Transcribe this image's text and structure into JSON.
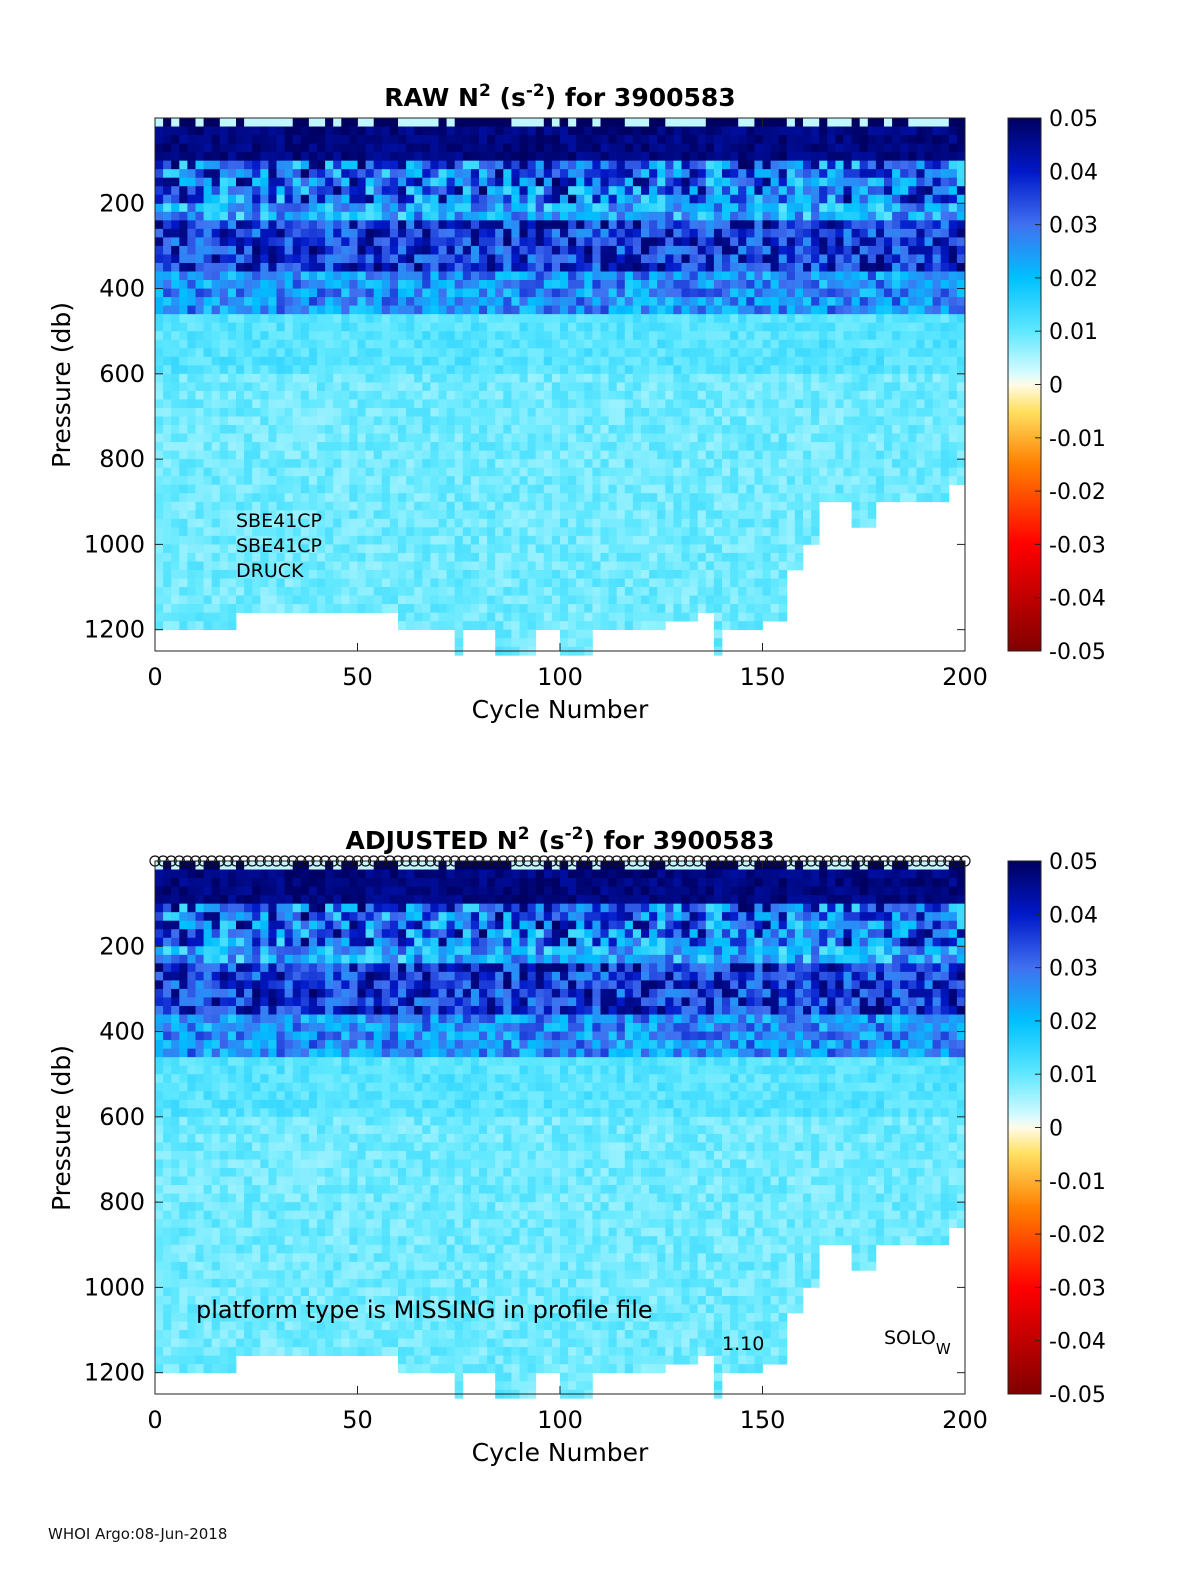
{
  "footer": "WHOI Argo:08-Jun-2018",
  "colors": {
    "colormap": [
      "#800000",
      "#ff0000",
      "#ff8000",
      "#ffe060",
      "#fffbe8",
      "#d8fbff",
      "#60e8ff",
      "#00c0ff",
      "#4070f0",
      "#0018c8",
      "#000060"
    ]
  },
  "chart_data": [
    {
      "type": "heatmap",
      "title_prefix": "RAW N",
      "title_sup1": "2",
      "title_mid": " (s",
      "title_sup2": "-2",
      "title_suffix": ") for 3900583",
      "xlabel": "Cycle Number",
      "ylabel": "Pressure (db)",
      "xlim": [
        0,
        200
      ],
      "ylim": [
        0,
        1250
      ],
      "xticks": [
        "0",
        "50",
        "100",
        "150",
        "200"
      ],
      "yticks": [
        "200",
        "400",
        "600",
        "800",
        "1000",
        "1200"
      ],
      "clim": [
        -0.05,
        0.05
      ],
      "colorbar_ticks": [
        "0.05",
        "0.04",
        "0.03",
        "0.02",
        "0.01",
        "0",
        "-0.01",
        "-0.02",
        "-0.03",
        "-0.04",
        "-0.05"
      ],
      "annotations": [
        "SBE41CP",
        "SBE41CP",
        "DRUCK"
      ],
      "max_pressure_profile": [
        [
          0,
          1200
        ],
        [
          20,
          1150
        ],
        [
          60,
          1200
        ],
        [
          70,
          1200
        ],
        [
          74,
          1250
        ],
        [
          76,
          1200
        ],
        [
          83,
          1250
        ],
        [
          94,
          1200
        ],
        [
          100,
          1250
        ],
        [
          108,
          1200
        ],
        [
          125,
          1180
        ],
        [
          134,
          1150
        ],
        [
          138,
          1250
        ],
        [
          140,
          1200
        ],
        [
          150,
          1180
        ],
        [
          155,
          1050
        ],
        [
          160,
          1000
        ],
        [
          164,
          900
        ],
        [
          169,
          900
        ],
        [
          172,
          950
        ],
        [
          178,
          900
        ],
        [
          195,
          850
        ],
        [
          198,
          850
        ],
        [
          200,
          850
        ]
      ]
    },
    {
      "type": "heatmap",
      "title_prefix": "ADJUSTED N",
      "title_sup1": "2",
      "title_mid": " (s",
      "title_sup2": "-2",
      "title_suffix": ") for 3900583",
      "xlabel": "Cycle Number",
      "ylabel": "Pressure (db)",
      "xlim": [
        0,
        200
      ],
      "ylim": [
        0,
        1250
      ],
      "xticks": [
        "0",
        "50",
        "100",
        "150",
        "200"
      ],
      "yticks": [
        "200",
        "400",
        "600",
        "800",
        "1000",
        "1200"
      ],
      "clim": [
        -0.05,
        0.05
      ],
      "colorbar_ticks": [
        "0.05",
        "0.04",
        "0.03",
        "0.02",
        "0.01",
        "0",
        "-0.01",
        "-0.02",
        "-0.03",
        "-0.04",
        "-0.05"
      ],
      "annotations": [
        "platform type is MISSING in profile file",
        "1.10",
        "SOLO",
        "W"
      ],
      "qc_markers": "circles",
      "max_pressure_profile": [
        [
          0,
          1200
        ],
        [
          20,
          1150
        ],
        [
          60,
          1200
        ],
        [
          70,
          1200
        ],
        [
          74,
          1250
        ],
        [
          76,
          1200
        ],
        [
          83,
          1250
        ],
        [
          94,
          1200
        ],
        [
          100,
          1250
        ],
        [
          108,
          1200
        ],
        [
          125,
          1180
        ],
        [
          134,
          1150
        ],
        [
          138,
          1250
        ],
        [
          140,
          1200
        ],
        [
          150,
          1180
        ],
        [
          155,
          1050
        ],
        [
          160,
          1000
        ],
        [
          164,
          900
        ],
        [
          169,
          900
        ],
        [
          172,
          950
        ],
        [
          178,
          900
        ],
        [
          195,
          850
        ],
        [
          198,
          850
        ],
        [
          200,
          850
        ]
      ]
    }
  ]
}
